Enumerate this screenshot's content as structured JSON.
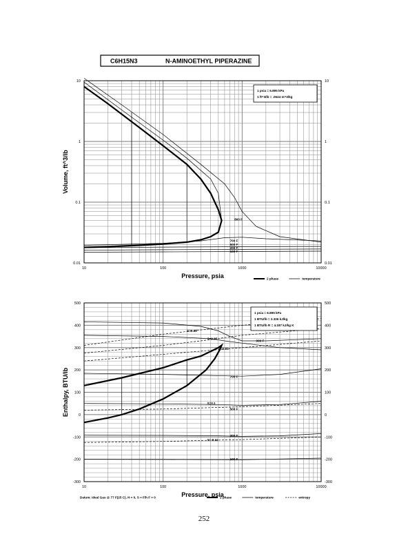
{
  "header": {
    "formula": "C6H15N3",
    "name": "N-AMINOETHYL PIPERAZINE"
  },
  "page_number": "252",
  "colors": {
    "ink": "#000000",
    "grid": "#777777",
    "paper": "#ffffff"
  },
  "chart_data": [
    {
      "type": "line",
      "xlabel": "Pressure,  psia",
      "ylabel": "Volume, ft^3/lb",
      "xscale": "log",
      "yscale": "log",
      "xlim": [
        10,
        10000
      ],
      "ylim": [
        0.01,
        10
      ],
      "xticks": [
        "10",
        "100",
        "1000",
        "10000"
      ],
      "yticks_left": [
        "0.01",
        "0.1",
        "1",
        "10"
      ],
      "yticks_right": [
        "0.01",
        "0.1",
        "1",
        "10"
      ],
      "notes": [
        "1 psia = 6.895 kPa",
        "1 ft^3/lb = .0624 m^3/kg"
      ],
      "legend": [
        "2 phase",
        "temperature"
      ],
      "isotherm_labels": [
        {
          "text": "800 F",
          "x": 800,
          "y": 0.052
        },
        {
          "text": "700 F",
          "x": 700,
          "y": 0.023
        },
        {
          "text": "600 F",
          "x": 700,
          "y": 0.02
        },
        {
          "text": "200 F",
          "x": 700,
          "y": 0.0175
        },
        {
          "text": "100 F",
          "x": 700,
          "y": 0.0155
        }
      ],
      "series": [
        {
          "name": "2 phase",
          "kind": "dome",
          "x": [
            10,
            20,
            50,
            100,
            200,
            300,
            400,
            500,
            550,
            500,
            400,
            300,
            200,
            100,
            50,
            20,
            10
          ],
          "y": [
            8,
            4.2,
            1.7,
            0.85,
            0.42,
            0.24,
            0.14,
            0.075,
            0.05,
            0.032,
            0.027,
            0.024,
            0.022,
            0.0205,
            0.0195,
            0.0185,
            0.018
          ]
        },
        {
          "kind": "isotherm",
          "x": [
            10,
            30,
            100,
            300,
            600,
            800,
            1000,
            1500,
            3000,
            10000
          ],
          "y": [
            11,
            4,
            1.3,
            0.42,
            0.2,
            0.12,
            0.07,
            0.04,
            0.027,
            0.022
          ]
        },
        {
          "kind": "isotherm",
          "x": [
            10,
            30,
            100,
            200,
            400,
            500,
            550
          ],
          "y": [
            9.5,
            3.3,
            1.05,
            0.53,
            0.24,
            0.14,
            0.05
          ]
        },
        {
          "kind": "isotherm",
          "x": [
            10,
            100,
            300,
            600,
            1000,
            2000,
            10000
          ],
          "y": [
            0.0195,
            0.021,
            0.023,
            0.026,
            0.0265,
            0.025,
            0.023
          ]
        },
        {
          "kind": "isotherm",
          "x": [
            10,
            100,
            1000,
            10000
          ],
          "y": [
            0.0178,
            0.0182,
            0.0185,
            0.0187
          ]
        },
        {
          "kind": "isotherm",
          "x": [
            10,
            100,
            1000,
            10000
          ],
          "y": [
            0.0162,
            0.0165,
            0.0167,
            0.0169
          ]
        },
        {
          "kind": "isotherm",
          "x": [
            10,
            100,
            1000,
            10000
          ],
          "y": [
            0.015,
            0.0152,
            0.0154,
            0.0156
          ]
        },
        {
          "kind": "isobar",
          "x": [
            40,
            40
          ],
          "y": [
            0.0195,
            3.0
          ]
        },
        {
          "kind": "isobar",
          "x": [
            200,
            200
          ],
          "y": [
            0.022,
            0.42
          ]
        }
      ]
    },
    {
      "type": "line",
      "xlabel": "Pressure,  psia",
      "ylabel": "Enthalpy, BTU/lb",
      "xscale": "log",
      "yscale": "linear",
      "xlim": [
        10,
        10000
      ],
      "ylim": [
        -300,
        500
      ],
      "xticks": [
        "10",
        "100",
        "1000",
        "10000"
      ],
      "yticks_left": [
        "-300",
        "-200",
        "-100",
        "0",
        "100",
        "200",
        "300",
        "400",
        "500"
      ],
      "yticks_right": [
        "-300",
        "-200",
        "-100",
        "0",
        "100",
        "200",
        "300",
        "400",
        "500"
      ],
      "notes": [
        "1 psia = 6.895 kPa",
        "1 BTU/lb = 2.326 kJ/kg",
        "1 BTU/lb R = 4.187 kJ/kg K"
      ],
      "legend": [
        "2 phase",
        "temperature",
        "entropy"
      ],
      "footnote": "Datum: Ideal Gas @ 77 F(25 C), H = 0, S = F/h F = 0",
      "isotherm_labels": [
        {
          "text": "900 F",
          "x": 1500,
          "y": 330
        },
        {
          "text": "700 F",
          "x": 700,
          "y": 170
        },
        {
          "text": "500 F",
          "x": 700,
          "y": 25
        },
        {
          "text": "300 F",
          "x": 700,
          "y": -95
        },
        {
          "text": "100 F",
          "x": 700,
          "y": -200
        }
      ],
      "entropy_labels": [
        {
          "text": "S=0.39",
          "x": 200,
          "y": 375
        },
        {
          "text": "S=0.35",
          "x": 360,
          "y": 340
        },
        {
          "text": "S=0.31",
          "x": 500,
          "y": 295
        },
        {
          "text": "S=0.1",
          "x": 360,
          "y": 50
        },
        {
          "text": "S=-0.11",
          "x": 360,
          "y": -113
        }
      ],
      "series": [
        {
          "name": "2 phase",
          "kind": "dome",
          "x": [
            10,
            30,
            100,
            200,
            300,
            400,
            500,
            550,
            520,
            450,
            350,
            200,
            100,
            50,
            30,
            20,
            10
          ],
          "y": [
            130,
            165,
            210,
            245,
            262,
            283,
            300,
            310,
            290,
            250,
            200,
            130,
            70,
            25,
            0,
            -15,
            -35
          ]
        },
        {
          "kind": "isotherm",
          "x": [
            10,
            100,
            300,
            500,
            700,
            1000,
            2000,
            10000
          ],
          "y": [
            415,
            410,
            395,
            375,
            350,
            330,
            330,
            340
          ]
        },
        {
          "kind": "isotherm",
          "x": [
            10,
            100,
            400,
            600,
            1000,
            3000,
            10000
          ],
          "y": [
            355,
            350,
            340,
            330,
            320,
            300,
            290
          ]
        },
        {
          "kind": "isotherm",
          "x": [
            10,
            100,
            300,
            1000,
            3000,
            10000
          ],
          "y": [
            185,
            180,
            176,
            172,
            180,
            205
          ]
        },
        {
          "kind": "isotherm",
          "x": [
            10,
            100,
            500,
            1000,
            3000,
            10000
          ],
          "y": [
            50,
            48,
            45,
            42,
            45,
            60
          ]
        },
        {
          "kind": "isotherm",
          "x": [
            10,
            100,
            500,
            1000,
            3000,
            10000
          ],
          "y": [
            -92,
            -93,
            -95,
            -97,
            -95,
            -85
          ]
        },
        {
          "kind": "isotherm",
          "x": [
            10,
            100,
            1000,
            10000
          ],
          "y": [
            -200,
            -201,
            -202,
            -195
          ]
        },
        {
          "kind": "entropy",
          "x": [
            10,
            100,
            1000,
            10000
          ],
          "y": [
            310,
            360,
            400,
            430
          ]
        },
        {
          "kind": "entropy",
          "x": [
            10,
            100,
            300,
            1000,
            10000
          ],
          "y": [
            275,
            310,
            330,
            355,
            385
          ]
        },
        {
          "kind": "entropy",
          "x": [
            10,
            100,
            1000,
            10000
          ],
          "y": [
            240,
            270,
            300,
            330
          ]
        },
        {
          "kind": "entropy",
          "x": [
            10,
            100,
            1000,
            10000
          ],
          "y": [
            20,
            25,
            35,
            50
          ]
        },
        {
          "kind": "entropy",
          "x": [
            10,
            100,
            1000,
            10000
          ],
          "y": [
            -125,
            -120,
            -112,
            -100
          ]
        },
        {
          "kind": "isobar",
          "x": [
            30,
            30
          ],
          "y": [
            0,
            165
          ]
        },
        {
          "kind": "isobar",
          "x": [
            200,
            200
          ],
          "y": [
            130,
            245
          ]
        }
      ]
    }
  ]
}
